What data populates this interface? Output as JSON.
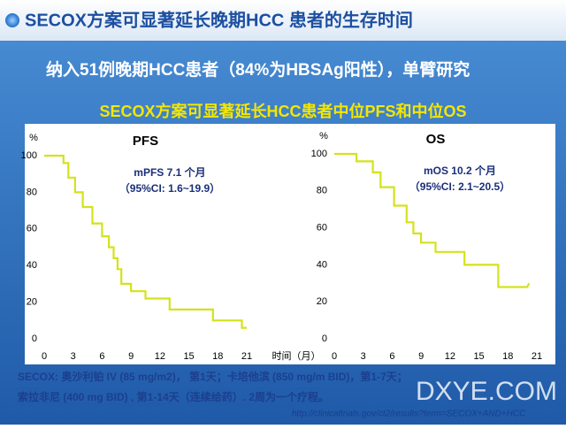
{
  "header": {
    "title": "SECOX方案可显著延长晚期HCC 患者的生存时间"
  },
  "subtitle": "纳入51例晚期HCC患者（84%为HBSAg阳性），单臂研究",
  "heading": "SECOX方案可显著延长HCC患者中位PFS和中位OS",
  "chart_data": [
    {
      "type": "line",
      "title": "PFS",
      "y_label": "%",
      "x_label": "时间（月）",
      "annotations": [
        "mPFS 7.1 个月",
        "（95%CI: 1.6~19.9）"
      ],
      "x": [
        0,
        2,
        2,
        2.5,
        2.5,
        3.2,
        3.2,
        4,
        4,
        5,
        5,
        6,
        6,
        6.7,
        6.7,
        7.2,
        7.2,
        7.6,
        7.6,
        8,
        8,
        9,
        9,
        10.5,
        10.5,
        13,
        13,
        17.5,
        17.5,
        20.5,
        20.5,
        21
      ],
      "series": [
        {
          "color": "#d4e21c",
          "values": [
            100,
            100,
            96,
            96,
            88,
            88,
            80,
            80,
            72,
            72,
            63,
            63,
            56,
            56,
            50,
            50,
            44,
            44,
            38,
            38,
            30,
            30,
            26,
            26,
            22,
            22,
            16,
            16,
            10,
            10,
            6,
            6
          ]
        }
      ],
      "xlim": [
        0,
        21
      ],
      "ylim": [
        0,
        100
      ],
      "xticks": [
        0,
        3,
        6,
        9,
        12,
        15,
        18,
        21
      ],
      "yticks": [
        0,
        20,
        40,
        60,
        80,
        100
      ]
    },
    {
      "type": "line",
      "title": "OS",
      "y_label": "%",
      "annotations": [
        "mOS 10.2 个月",
        "（95%CI: 2.1~20.5）"
      ],
      "x": [
        0,
        2.3,
        2.3,
        4,
        4,
        4.8,
        4.8,
        6.2,
        6.2,
        7.5,
        7.5,
        8.2,
        8.2,
        9,
        9,
        10.5,
        10.5,
        13.5,
        13.5,
        17,
        17,
        20,
        20.2
      ],
      "series": [
        {
          "color": "#d4e21c",
          "values": [
            100,
            100,
            96,
            96,
            90,
            90,
            82,
            82,
            72,
            72,
            63,
            63,
            57,
            57,
            52,
            52,
            47,
            47,
            40,
            40,
            28,
            28,
            30
          ]
        }
      ],
      "xlim": [
        0,
        21
      ],
      "ylim": [
        0,
        100
      ],
      "xticks": [
        0,
        3,
        6,
        9,
        12,
        15,
        18,
        21
      ],
      "yticks": [
        0,
        20,
        40,
        60,
        80,
        100
      ]
    }
  ],
  "footer": {
    "lines": [
      "SECOX: 奥沙利铂 IV (85 mg/m2)， 第1天；卡培他滨 (850 mg/m BID)，第1-7天；",
      "索拉非尼 (400 mg BID) , 第1-14天（连续给药）. 2周为一个疗程。"
    ],
    "url": "http://clinicaltrials.gov/ct2/results?term=SECOX+AND+HCC",
    "watermark": "DXYE.COM"
  }
}
